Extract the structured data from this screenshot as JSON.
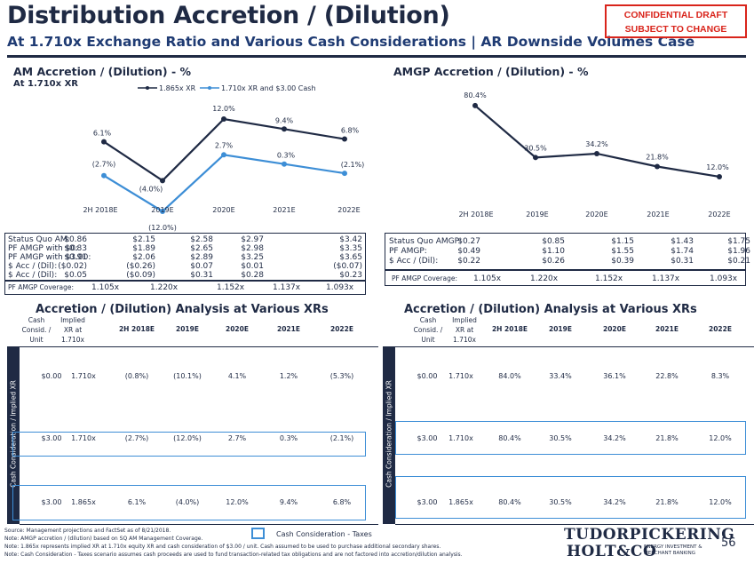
{
  "header": {
    "title": "Distribution Accretion / (Dilution)",
    "subtitle": "At 1.710x Exchange Ratio and Various Cash Considerations | AR Downside Volumes Case",
    "confidential_line1": "CONFIDENTIAL DRAFT",
    "confidential_line2": "SUBJECT TO CHANGE"
  },
  "am_chart": {
    "section_title": "AM Accretion / (Dilution) - %",
    "section_subtitle": "At 1.710x XR",
    "legend": [
      "1.865x XR",
      "1.710x XR and $3.00 Cash"
    ]
  },
  "amgp_chart": {
    "section_title": "AMGP Accretion / (Dilution) - %"
  },
  "chart_data": [
    {
      "type": "line",
      "title": "AM Accretion / (Dilution) - %",
      "categories": [
        "2H 2018E",
        "2019E",
        "2020E",
        "2021E",
        "2022E"
      ],
      "series": [
        {
          "name": "1.865x XR",
          "values": [
            6.1,
            -4.0,
            12.0,
            9.4,
            6.8
          ],
          "labels": [
            "6.1%",
            "(4.0%)",
            "12.0%",
            "9.4%",
            "6.8%"
          ],
          "color": "#1f2a44"
        },
        {
          "name": "1.710x XR and $3.00 Cash",
          "values": [
            -2.7,
            -12.0,
            2.7,
            0.3,
            -2.1
          ],
          "labels": [
            "(2.7%)",
            "(12.0%)",
            "2.7%",
            "0.3%",
            "(2.1%)"
          ],
          "color": "#3d8ed6"
        }
      ]
    },
    {
      "type": "line",
      "title": "AMGP Accretion / (Dilution) - %",
      "categories": [
        "2H 2018E",
        "2019E",
        "2020E",
        "2021E",
        "2022E"
      ],
      "series": [
        {
          "values": [
            80.4,
            30.5,
            34.2,
            21.8,
            12.0
          ],
          "labels": [
            "80.4%",
            "30.5%",
            "34.2%",
            "21.8%",
            "12.0%"
          ],
          "color": "#1f2a44"
        }
      ]
    }
  ],
  "am_panel": {
    "labels": [
      "Status Quo AM:",
      "PF AMGP with $0:",
      "PF AMGP with $3.00:",
      "$ Acc / (Dil):",
      "$ Acc / (Dil):"
    ],
    "rows": [
      [
        "$0.86",
        "$2.15",
        "$2.58",
        "$2.97",
        "$3.42"
      ],
      [
        "$0.83",
        "$1.89",
        "$2.65",
        "$2.98",
        "$3.35"
      ],
      [
        "$0.91",
        "$2.06",
        "$2.89",
        "$3.25",
        "$3.65"
      ],
      [
        "($0.02)",
        "($0.26)",
        "$0.07",
        "$0.01",
        "($0.07)"
      ],
      [
        "$0.05",
        "($0.09)",
        "$0.31",
        "$0.28",
        "$0.23"
      ]
    ],
    "coverage_label": "PF AMGP Coverage:",
    "coverage": [
      "1.105x",
      "1.220x",
      "1.152x",
      "1.137x",
      "1.093x"
    ]
  },
  "amgp_panel": {
    "labels": [
      "Status Quo AMGP:",
      "PF AMGP:",
      "$ Acc / (Dil):"
    ],
    "rows": [
      [
        "$0.27",
        "$0.85",
        "$1.15",
        "$1.43",
        "$1.75"
      ],
      [
        "$0.49",
        "$1.10",
        "$1.55",
        "$1.74",
        "$1.96"
      ],
      [
        "$0.22",
        "$0.26",
        "$0.39",
        "$0.31",
        "$0.21"
      ]
    ],
    "coverage_label": "PF AMGP Coverage:",
    "coverage": [
      "1.105x",
      "1.220x",
      "1.152x",
      "1.137x",
      "1.093x"
    ]
  },
  "am_table": {
    "title": "Accretion / (Dilution) Analysis at Various XRs",
    "headers": [
      "Cash Consid. / Unit",
      "Implied XR at 1.710x",
      "2H 2018E",
      "2019E",
      "2020E",
      "2021E",
      "2022E"
    ],
    "side_label": "Cash Consideration / Implied XR",
    "rows": [
      [
        "$0.00",
        "1.710x",
        "(0.8%)",
        "(10.1%)",
        "4.1%",
        "1.2%",
        "(5.3%)"
      ],
      [
        "$3.00",
        "1.710x",
        "(2.7%)",
        "(12.0%)",
        "2.7%",
        "0.3%",
        "(2.1%)"
      ],
      [
        "$3.00",
        "1.865x",
        "6.1%",
        "(4.0%)",
        "12.0%",
        "9.4%",
        "6.8%"
      ]
    ]
  },
  "amgp_table": {
    "title": "Accretion / (Dilution) Analysis at Various XRs",
    "headers": [
      "Cash Consid. / Unit",
      "Implied XR at 1.710x",
      "2H 2018E",
      "2019E",
      "2020E",
      "2021E",
      "2022E"
    ],
    "side_label": "Cash Consideration / Implied XR",
    "rows": [
      [
        "$0.00",
        "1.710x",
        "84.0%",
        "33.4%",
        "36.1%",
        "22.8%",
        "8.3%"
      ],
      [
        "$3.00",
        "1.710x",
        "80.4%",
        "30.5%",
        "34.2%",
        "21.8%",
        "12.0%"
      ],
      [
        "$3.00",
        "1.865x",
        "80.4%",
        "30.5%",
        "34.2%",
        "21.8%",
        "12.0%"
      ]
    ]
  },
  "legend_box_label": "Cash Consideration - Taxes",
  "footnotes": [
    "Source: Management projections and FactSet as of 8/21/2018.",
    "Note: AMGP accretion / (dilution) based on SQ AM Management Coverage.",
    "Note: 1.865x represents implied XR at 1.710x equity XR and cash consideration of $3.00 / unit. Cash assumed to be used to purchase additional secondary shares.",
    "Note: Cash Consideration - Taxes scenario assumes cash proceeds are used to fund transaction-related tax obligations and are not factored into accretion/dilution analysis."
  ],
  "logo": {
    "line1": "TUDORPICKERING",
    "line2": "HOLT&CO",
    "tag1": "ENERGY INVESTMENT &",
    "tag2": "MERCHANT BANKING"
  },
  "page_number": "56"
}
